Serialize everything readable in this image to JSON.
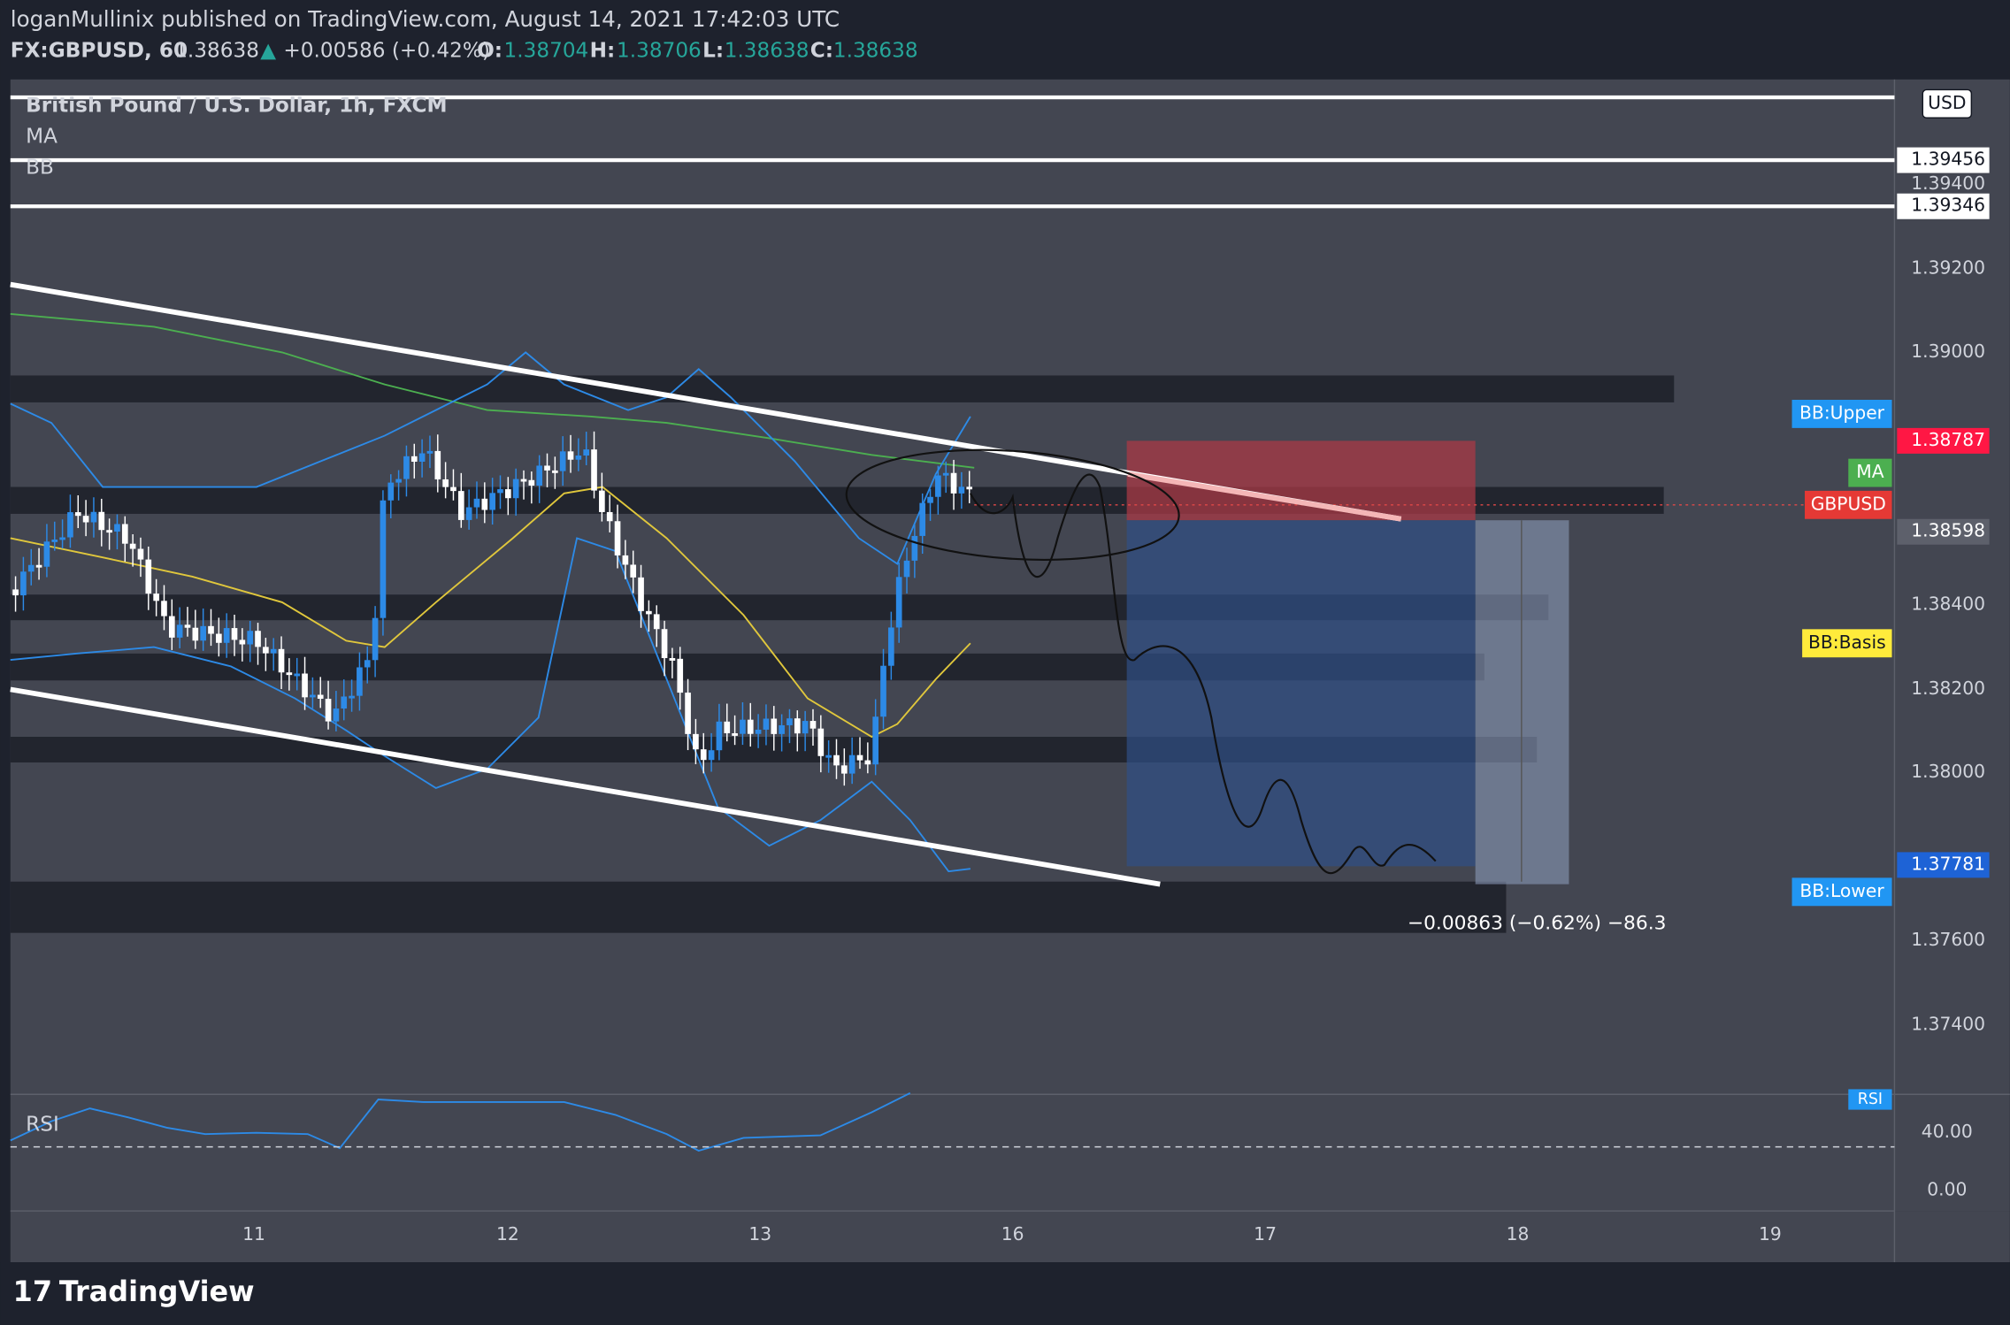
{
  "header": {
    "publisher": "loganMullinix published on TradingView.com, August 14, 2021 17:42:03 UTC",
    "symbol": "FX:GBPUSD, 60",
    "price": "1.38638",
    "change": "+0.00586 (+0.42%)",
    "o_label": "O:",
    "o": "1.38704",
    "h_label": "H:",
    "h": "1.38706",
    "l_label": "L:",
    "l": "1.38638",
    "c_label": "C:",
    "c": "1.38638"
  },
  "legend": {
    "title": "British Pound / U.S. Dollar, 1h, FXCM",
    "indicators": [
      "MA",
      "BB"
    ],
    "rsi": "RSI"
  },
  "price_axis": {
    "currency": "USD",
    "ticks": [
      "1.39400",
      "1.39200",
      "1.39000",
      "1.38400",
      "1.38200",
      "1.38000",
      "1.37600",
      "1.37400"
    ],
    "levels": [
      "1.39456",
      "1.39346",
      "1.38787",
      "1.38598",
      "1.37781"
    ]
  },
  "tags": {
    "bb_upper": "BB:Upper",
    "ma": "MA",
    "symbol": "GBPUSD",
    "bb_basis": "BB:Basis",
    "bb_lower": "BB:Lower",
    "rsi": "RSI"
  },
  "rsi_axis": {
    "ticks": [
      "40.00",
      "0.00"
    ]
  },
  "time_axis": {
    "ticks": [
      "11",
      "12",
      "13",
      "16",
      "17",
      "18",
      "19"
    ]
  },
  "measure": "−0.00863 (−0.62%) −86.3",
  "logo": "TradingView"
}
